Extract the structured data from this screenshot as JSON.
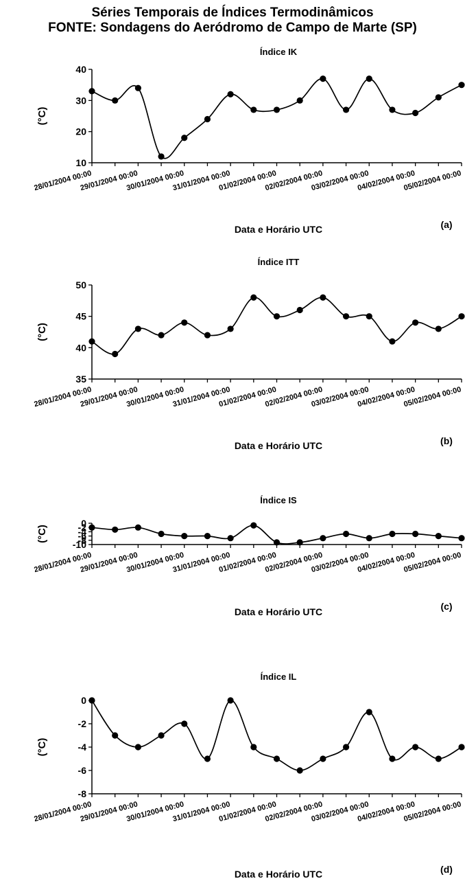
{
  "header": {
    "line1": "Séries Temporais de Índices Termodinâmicos",
    "line2": "FONTE: Sondagens do Aeródromo de Campo de Marte (SP)"
  },
  "chart_data": [
    {
      "type": "line",
      "title": "Índice  IK",
      "ylabel": "(°C)",
      "xlabel": "Data e Horário UTC",
      "panel": "(a)",
      "ylim": [
        10,
        40
      ],
      "yticks": [
        10,
        20,
        30,
        40
      ],
      "x_tick_labels": [
        "28/01/2004 00:00",
        "29/01/2004 00:00",
        "30/01/2004 00:00",
        "31/01/2004 00:00",
        "01/02/2004 00:00",
        "02/02/2004 00:00",
        "03/02/2004 00:00",
        "04/02/2004 00:00",
        "05/02/2004 00:00"
      ],
      "series": [
        {
          "values": [
            33,
            30,
            34,
            12,
            18,
            24,
            32,
            27,
            27,
            30,
            37,
            27,
            37,
            27,
            26,
            31,
            35
          ]
        }
      ]
    },
    {
      "type": "line",
      "title": "Índice ITT",
      "ylabel": "(°C)",
      "xlabel": "Data e Horário UTC",
      "panel": "(b)",
      "ylim": [
        35,
        50
      ],
      "yticks": [
        35,
        40,
        45,
        50
      ],
      "x_tick_labels": [
        "28/01/2004 00:00",
        "29/01/2004 00:00",
        "30/01/2004 00:00",
        "31/01/2004 00:00",
        "01/02/2004 00:00",
        "02/02/2004 00:00",
        "03/02/2004 00:00",
        "04/02/2004 00:00",
        "05/02/2004 00:00"
      ],
      "series": [
        {
          "values": [
            41,
            39,
            43,
            42,
            44,
            42,
            43,
            48,
            45,
            46,
            48,
            45,
            45,
            41,
            44,
            43,
            45
          ]
        }
      ]
    },
    {
      "type": "line",
      "title": "Índice IS",
      "ylabel": "(°C)",
      "xlabel": "Data e Horário UTC",
      "panel": "(c)",
      "ylim": [
        -10,
        0
      ],
      "yticks": [
        -10,
        -8,
        -6,
        -4,
        -2,
        0
      ],
      "x_tick_labels": [
        "28/01/2004 00:00",
        "29/01/2004 00:00",
        "30/01/2004 00:00",
        "31/01/2004 00:00",
        "01/02/2004 00:00",
        "02/02/2004 00:00",
        "03/02/2004 00:00",
        "04/02/2004 00:00",
        "05/02/2004 00:00"
      ],
      "series": [
        {
          "values": [
            -2,
            -3,
            -2,
            -5,
            -6,
            -6,
            -7,
            -1,
            -9,
            -9,
            -7,
            -5,
            -7,
            -5,
            -5,
            -6,
            -7
          ]
        }
      ]
    },
    {
      "type": "line",
      "title": "Índice IL",
      "ylabel": "(°C)",
      "xlabel": "Data e Horário UTC",
      "panel": "(d)",
      "ylim": [
        -8,
        0
      ],
      "yticks": [
        -8,
        -6,
        -4,
        -2,
        0
      ],
      "x_tick_labels": [
        "28/01/2004 00:00",
        "29/01/2004 00:00",
        "30/01/2004 00:00",
        "31/01/2004 00:00",
        "01/02/2004 00:00",
        "02/02/2004 00:00",
        "03/02/2004 00:00",
        "04/02/2004 00:00",
        "05/02/2004 00:00"
      ],
      "series": [
        {
          "values": [
            0,
            -3,
            -4,
            -3,
            -2,
            -5,
            0,
            -4,
            -5,
            -6,
            -5,
            -4,
            -1,
            -5,
            -4,
            -5,
            -4
          ]
        }
      ]
    }
  ]
}
